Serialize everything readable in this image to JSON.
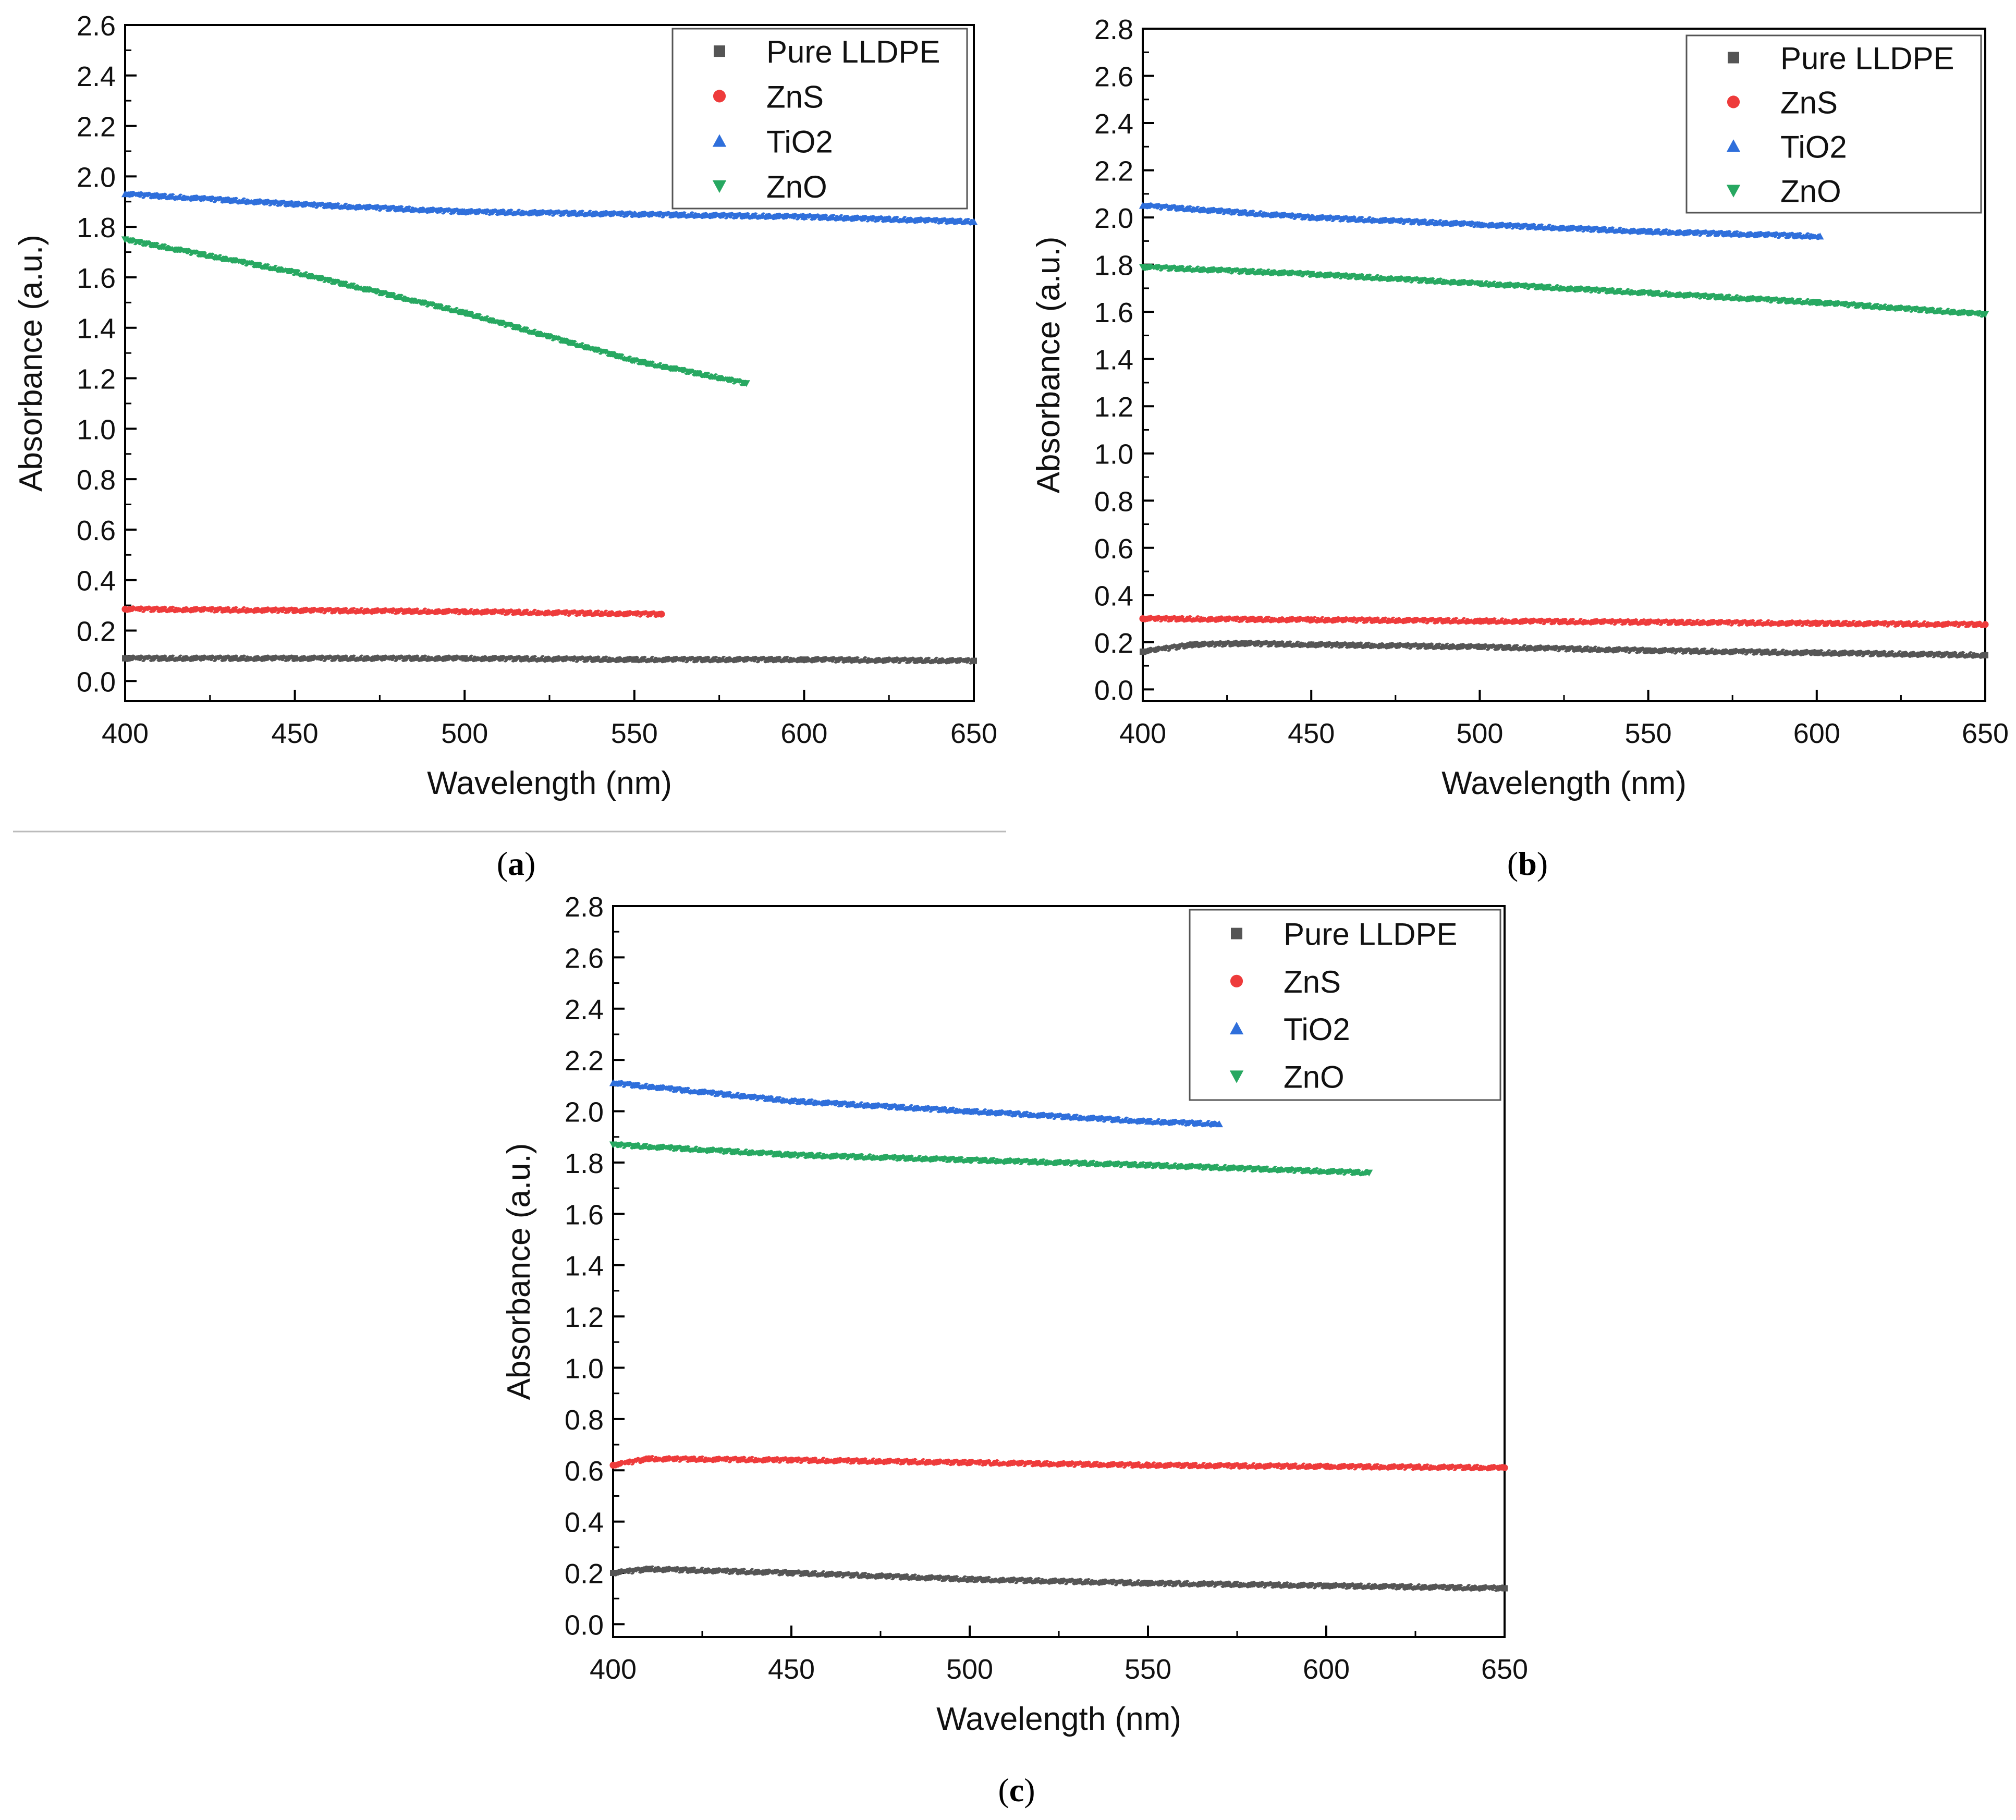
{
  "figure": {
    "panels": [
      {
        "id": "a",
        "caption_letter": "a",
        "caption_open": "(",
        "caption_close": ")"
      },
      {
        "id": "b",
        "caption_letter": "b",
        "caption_open": "(",
        "caption_close": ")"
      },
      {
        "id": "c",
        "caption_letter": "c",
        "caption_open": "(",
        "caption_close": ")"
      }
    ]
  },
  "chart_data": [
    {
      "panel": "a",
      "type": "scatter",
      "title": "",
      "xlabel": "Wavelength (nm)",
      "ylabel": "Absorbance (a.u.)",
      "xlim": [
        400,
        650
      ],
      "ylim": [
        -0.08,
        2.6
      ],
      "xticks": [
        400,
        450,
        500,
        550,
        600,
        650
      ],
      "yticks": [
        0.0,
        0.2,
        0.4,
        0.6,
        0.8,
        1.0,
        1.2,
        1.4,
        1.6,
        1.8,
        2.0,
        2.2,
        2.4,
        2.6
      ],
      "legend_position": "top-right",
      "series": [
        {
          "name": "Pure LLDPE",
          "marker": "square",
          "color": "#555555",
          "x": [
            400,
            450,
            500,
            550,
            600,
            650
          ],
          "y": [
            0.09,
            0.09,
            0.09,
            0.085,
            0.085,
            0.08
          ]
        },
        {
          "name": "ZnS",
          "marker": "circle",
          "color": "#ee3b3b",
          "x": [
            400,
            450,
            500,
            558
          ],
          "y": [
            0.285,
            0.28,
            0.275,
            0.265
          ]
        },
        {
          "name": "TiO2",
          "marker": "triangle-up",
          "color": "#2f6fdb",
          "x": [
            400,
            450,
            500,
            550,
            600,
            650
          ],
          "y": [
            1.93,
            1.89,
            1.86,
            1.85,
            1.84,
            1.82
          ]
        },
        {
          "name": "ZnO",
          "marker": "triangle-down",
          "color": "#27a861",
          "x": [
            400,
            450,
            500,
            550,
            583
          ],
          "y": [
            1.75,
            1.62,
            1.46,
            1.27,
            1.18
          ]
        }
      ]
    },
    {
      "panel": "b",
      "type": "scatter",
      "title": "",
      "xlabel": "Wavelength (nm)",
      "ylabel": "Absorbance (a.u.)",
      "xlim": [
        400,
        650
      ],
      "ylim": [
        -0.05,
        2.8
      ],
      "xticks": [
        400,
        450,
        500,
        550,
        600,
        650
      ],
      "yticks": [
        0.0,
        0.2,
        0.4,
        0.6,
        0.8,
        1.0,
        1.2,
        1.4,
        1.6,
        1.8,
        2.0,
        2.2,
        2.4,
        2.6,
        2.8
      ],
      "legend_position": "top-right",
      "series": [
        {
          "name": "Pure LLDPE",
          "marker": "square",
          "color": "#555555",
          "x": [
            400,
            415,
            430,
            450,
            500,
            550,
            600,
            650
          ],
          "y": [
            0.16,
            0.19,
            0.195,
            0.19,
            0.18,
            0.165,
            0.155,
            0.145
          ]
        },
        {
          "name": "ZnS",
          "marker": "circle",
          "color": "#ee3b3b",
          "x": [
            400,
            450,
            500,
            550,
            600,
            650
          ],
          "y": [
            0.3,
            0.295,
            0.29,
            0.285,
            0.28,
            0.275
          ]
        },
        {
          "name": "TiO2",
          "marker": "triangle-up",
          "color": "#2f6fdb",
          "x": [
            400,
            450,
            500,
            550,
            601
          ],
          "y": [
            2.05,
            2.0,
            1.97,
            1.94,
            1.92
          ]
        },
        {
          "name": "ZnO",
          "marker": "triangle-down",
          "color": "#27a861",
          "x": [
            400,
            450,
            500,
            550,
            600,
            650
          ],
          "y": [
            1.79,
            1.76,
            1.72,
            1.68,
            1.64,
            1.59
          ]
        }
      ]
    },
    {
      "panel": "c",
      "type": "scatter",
      "title": "",
      "xlabel": "Wavelength (nm)",
      "ylabel": "Absorbance (a.u.)",
      "xlim": [
        400,
        650
      ],
      "ylim": [
        -0.05,
        2.8
      ],
      "xticks": [
        400,
        450,
        500,
        550,
        600,
        650
      ],
      "yticks": [
        0.0,
        0.2,
        0.4,
        0.6,
        0.8,
        1.0,
        1.2,
        1.4,
        1.6,
        1.8,
        2.0,
        2.2,
        2.4,
        2.6,
        2.8
      ],
      "legend_position": "top-right",
      "series": [
        {
          "name": "Pure LLDPE",
          "marker": "square",
          "color": "#555555",
          "x": [
            400,
            410,
            450,
            500,
            550,
            600,
            650
          ],
          "y": [
            0.2,
            0.215,
            0.2,
            0.175,
            0.16,
            0.15,
            0.14
          ]
        },
        {
          "name": "ZnS",
          "marker": "circle",
          "color": "#ee3b3b",
          "x": [
            400,
            410,
            450,
            500,
            550,
            600,
            650
          ],
          "y": [
            0.62,
            0.645,
            0.64,
            0.63,
            0.62,
            0.615,
            0.61
          ]
        },
        {
          "name": "TiO2",
          "marker": "triangle-up",
          "color": "#2f6fdb",
          "x": [
            400,
            450,
            500,
            550,
            570
          ],
          "y": [
            2.11,
            2.04,
            2.0,
            1.96,
            1.95
          ]
        },
        {
          "name": "ZnO",
          "marker": "triangle-down",
          "color": "#27a861",
          "x": [
            400,
            450,
            500,
            550,
            612
          ],
          "y": [
            1.87,
            1.83,
            1.81,
            1.79,
            1.76
          ]
        }
      ]
    }
  ]
}
